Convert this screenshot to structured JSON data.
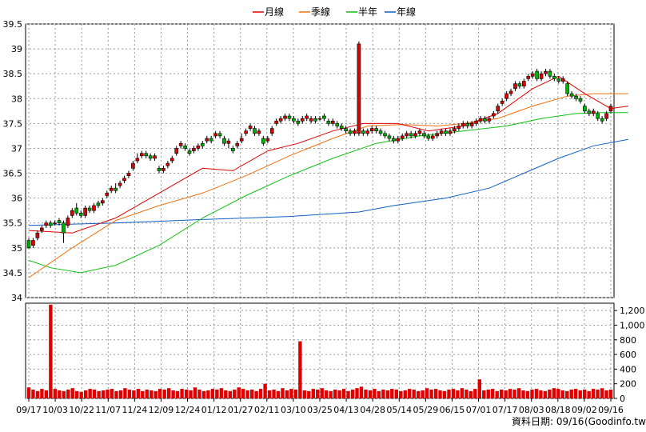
{
  "chart_data": [
    {
      "type": "candlestick",
      "legend": [
        {
          "name": "月線",
          "color": "#e00000"
        },
        {
          "name": "季線",
          "color": "#f07010"
        },
        {
          "name": "半年",
          "color": "#10c010"
        },
        {
          "name": "年線",
          "color": "#1060c0"
        }
      ],
      "legend_position": "top-center",
      "ylim": [
        34,
        39.5
      ],
      "yticks": [
        "34",
        "34.5",
        "35",
        "35.5",
        "36",
        "36.5",
        "37",
        "37.5",
        "38",
        "38.5",
        "39",
        "39.5"
      ],
      "grid": true,
      "candles": [
        [
          35.15,
          35.0,
          35.2,
          34.98
        ],
        [
          35.05,
          35.15,
          35.2,
          35.0
        ],
        [
          35.2,
          35.3,
          35.35,
          35.15
        ],
        [
          35.35,
          35.4,
          35.45,
          35.3
        ],
        [
          35.45,
          35.5,
          35.55,
          35.4
        ],
        [
          35.5,
          35.45,
          35.55,
          35.4
        ],
        [
          35.5,
          35.5,
          35.55,
          35.45
        ],
        [
          35.55,
          35.5,
          35.6,
          35.45
        ],
        [
          35.5,
          35.3,
          35.55,
          35.1
        ],
        [
          35.45,
          35.6,
          35.65,
          35.4
        ],
        [
          35.65,
          35.75,
          35.8,
          35.6
        ],
        [
          35.8,
          35.7,
          35.9,
          35.65
        ],
        [
          35.7,
          35.65,
          35.75,
          35.6
        ],
        [
          35.65,
          35.8,
          35.85,
          35.6
        ],
        [
          35.8,
          35.75,
          35.85,
          35.7
        ],
        [
          35.75,
          35.85,
          35.9,
          35.7
        ],
        [
          35.9,
          35.85,
          35.95,
          35.8
        ],
        [
          35.9,
          35.95,
          36.0,
          35.85
        ],
        [
          36.05,
          36.1,
          36.15,
          36.0
        ],
        [
          36.15,
          36.2,
          36.25,
          36.1
        ],
        [
          36.2,
          36.15,
          36.3,
          36.1
        ],
        [
          36.25,
          36.3,
          36.35,
          36.2
        ],
        [
          36.35,
          36.4,
          36.45,
          36.3
        ],
        [
          36.45,
          36.5,
          36.55,
          36.4
        ],
        [
          36.6,
          36.7,
          36.75,
          36.55
        ],
        [
          36.75,
          36.8,
          36.9,
          36.7
        ],
        [
          36.85,
          36.9,
          36.95,
          36.8
        ],
        [
          36.9,
          36.85,
          36.95,
          36.8
        ],
        [
          36.85,
          36.8,
          36.9,
          36.75
        ],
        [
          36.8,
          36.85,
          36.9,
          36.75
        ],
        [
          36.6,
          36.55,
          36.65,
          36.5
        ],
        [
          36.55,
          36.6,
          36.65,
          36.5
        ],
        [
          36.65,
          36.7,
          36.75,
          36.6
        ],
        [
          36.75,
          36.8,
          36.85,
          36.7
        ],
        [
          36.9,
          37.0,
          37.05,
          36.85
        ],
        [
          37.05,
          37.1,
          37.15,
          37.0
        ],
        [
          37.05,
          37.0,
          37.1,
          36.95
        ],
        [
          36.95,
          36.9,
          37.0,
          36.85
        ],
        [
          36.95,
          37.0,
          37.05,
          36.9
        ],
        [
          37.0,
          37.05,
          37.1,
          36.95
        ],
        [
          37.1,
          37.05,
          37.15,
          37.0
        ],
        [
          37.15,
          37.2,
          37.25,
          37.1
        ],
        [
          37.2,
          37.15,
          37.25,
          37.1
        ],
        [
          37.25,
          37.3,
          37.35,
          37.2
        ],
        [
          37.3,
          37.25,
          37.35,
          37.2
        ],
        [
          37.2,
          37.1,
          37.25,
          37.05
        ],
        [
          37.1,
          37.15,
          37.2,
          37.0
        ],
        [
          37.0,
          36.95,
          37.05,
          36.9
        ],
        [
          37.05,
          37.1,
          37.15,
          37.0
        ],
        [
          37.15,
          37.2,
          37.3,
          37.1
        ],
        [
          37.3,
          37.35,
          37.4,
          37.25
        ],
        [
          37.4,
          37.45,
          37.5,
          37.35
        ],
        [
          37.4,
          37.3,
          37.45,
          37.25
        ],
        [
          37.3,
          37.35,
          37.4,
          37.25
        ],
        [
          37.2,
          37.1,
          37.25,
          37.05
        ],
        [
          37.15,
          37.2,
          37.25,
          37.1
        ],
        [
          37.3,
          37.4,
          37.45,
          37.25
        ],
        [
          37.5,
          37.55,
          37.6,
          37.45
        ],
        [
          37.55,
          37.6,
          37.65,
          37.5
        ],
        [
          37.6,
          37.65,
          37.7,
          37.55
        ],
        [
          37.65,
          37.6,
          37.7,
          37.55
        ],
        [
          37.6,
          37.55,
          37.65,
          37.5
        ],
        [
          37.55,
          37.5,
          37.6,
          37.45
        ],
        [
          37.55,
          37.6,
          37.65,
          37.5
        ],
        [
          37.6,
          37.65,
          37.7,
          37.55
        ],
        [
          37.55,
          37.6,
          37.65,
          37.5
        ],
        [
          37.6,
          37.55,
          37.65,
          37.5
        ],
        [
          37.6,
          37.6,
          37.65,
          37.55
        ],
        [
          37.65,
          37.6,
          37.7,
          37.55
        ],
        [
          37.55,
          37.5,
          37.6,
          37.45
        ],
        [
          37.5,
          37.55,
          37.6,
          37.45
        ],
        [
          37.5,
          37.45,
          37.55,
          37.4
        ],
        [
          37.45,
          37.4,
          37.5,
          37.35
        ],
        [
          37.4,
          37.35,
          37.45,
          37.3
        ],
        [
          37.35,
          37.3,
          37.4,
          37.25
        ],
        [
          37.3,
          37.35,
          37.4,
          37.25
        ],
        [
          37.3,
          39.1,
          39.15,
          37.25
        ],
        [
          37.35,
          37.3,
          37.4,
          37.25
        ],
        [
          37.3,
          37.35,
          37.4,
          37.25
        ],
        [
          37.35,
          37.4,
          37.45,
          37.3
        ],
        [
          37.4,
          37.35,
          37.45,
          37.3
        ],
        [
          37.35,
          37.3,
          37.4,
          37.25
        ],
        [
          37.3,
          37.25,
          37.35,
          37.2
        ],
        [
          37.25,
          37.2,
          37.3,
          37.15
        ],
        [
          37.2,
          37.15,
          37.25,
          37.1
        ],
        [
          37.15,
          37.2,
          37.25,
          37.1
        ],
        [
          37.2,
          37.25,
          37.3,
          37.15
        ],
        [
          37.25,
          37.3,
          37.35,
          37.2
        ],
        [
          37.3,
          37.25,
          37.35,
          37.2
        ],
        [
          37.25,
          37.3,
          37.35,
          37.2
        ],
        [
          37.3,
          37.35,
          37.4,
          37.25
        ],
        [
          37.3,
          37.25,
          37.35,
          37.2
        ],
        [
          37.25,
          37.2,
          37.3,
          37.15
        ],
        [
          37.2,
          37.25,
          37.3,
          37.15
        ],
        [
          37.25,
          37.3,
          37.35,
          37.2
        ],
        [
          37.3,
          37.35,
          37.4,
          37.25
        ],
        [
          37.35,
          37.3,
          37.4,
          37.25
        ],
        [
          37.3,
          37.35,
          37.4,
          37.25
        ],
        [
          37.35,
          37.4,
          37.45,
          37.3
        ],
        [
          37.4,
          37.45,
          37.5,
          37.35
        ],
        [
          37.45,
          37.5,
          37.55,
          37.4
        ],
        [
          37.5,
          37.45,
          37.55,
          37.4
        ],
        [
          37.45,
          37.5,
          37.55,
          37.4
        ],
        [
          37.5,
          37.55,
          37.6,
          37.45
        ],
        [
          37.55,
          37.6,
          37.65,
          37.5
        ],
        [
          37.6,
          37.55,
          37.65,
          37.5
        ],
        [
          37.55,
          37.6,
          37.65,
          37.5
        ],
        [
          37.65,
          37.7,
          37.75,
          37.6
        ],
        [
          37.75,
          37.85,
          37.9,
          37.7
        ],
        [
          37.9,
          37.95,
          38.0,
          37.85
        ],
        [
          38.0,
          38.1,
          38.15,
          37.95
        ],
        [
          38.1,
          38.15,
          38.2,
          38.05
        ],
        [
          38.2,
          38.3,
          38.35,
          38.15
        ],
        [
          38.3,
          38.25,
          38.35,
          38.2
        ],
        [
          38.25,
          38.35,
          38.4,
          38.2
        ],
        [
          38.4,
          38.45,
          38.5,
          38.35
        ],
        [
          38.45,
          38.5,
          38.55,
          38.4
        ],
        [
          38.55,
          38.4,
          38.6,
          38.35
        ],
        [
          38.4,
          38.5,
          38.55,
          38.35
        ],
        [
          38.5,
          38.55,
          38.6,
          38.45
        ],
        [
          38.55,
          38.45,
          38.6,
          38.4
        ],
        [
          38.45,
          38.4,
          38.5,
          38.35
        ],
        [
          38.4,
          38.35,
          38.45,
          38.3
        ],
        [
          38.35,
          38.4,
          38.45,
          38.3
        ],
        [
          38.3,
          38.1,
          38.35,
          38.05
        ],
        [
          38.1,
          38.05,
          38.15,
          38.0
        ],
        [
          38.05,
          38.0,
          38.1,
          37.95
        ],
        [
          38.0,
          37.95,
          38.05,
          37.9
        ],
        [
          37.85,
          37.75,
          37.9,
          37.7
        ],
        [
          37.75,
          37.7,
          37.8,
          37.65
        ],
        [
          37.7,
          37.75,
          37.8,
          37.65
        ],
        [
          37.7,
          37.6,
          37.75,
          37.55
        ],
        [
          37.6,
          37.55,
          37.65,
          37.5
        ],
        [
          37.6,
          37.7,
          37.75,
          37.55
        ],
        [
          37.75,
          37.85,
          37.9,
          37.7
        ]
      ],
      "ma_month": [
        [
          0,
          35.35
        ],
        [
          10,
          35.3
        ],
        [
          20,
          35.6
        ],
        [
          30,
          36.1
        ],
        [
          40,
          36.6
        ],
        [
          47,
          36.55
        ],
        [
          55,
          36.95
        ],
        [
          62,
          37.1
        ],
        [
          70,
          37.35
        ],
        [
          77,
          37.5
        ],
        [
          85,
          37.5
        ],
        [
          92,
          37.35
        ],
        [
          100,
          37.45
        ],
        [
          108,
          37.7
        ],
        [
          116,
          38.2
        ],
        [
          122,
          38.45
        ],
        [
          128,
          38.1
        ],
        [
          134,
          37.8
        ],
        [
          138,
          37.85
        ]
      ],
      "ma_quarter": [
        [
          0,
          34.4
        ],
        [
          10,
          35.0
        ],
        [
          20,
          35.55
        ],
        [
          30,
          35.85
        ],
        [
          40,
          36.1
        ],
        [
          50,
          36.45
        ],
        [
          60,
          36.85
        ],
        [
          70,
          37.2
        ],
        [
          78,
          37.45
        ],
        [
          86,
          37.48
        ],
        [
          94,
          37.45
        ],
        [
          100,
          37.5
        ],
        [
          108,
          37.6
        ],
        [
          116,
          37.85
        ],
        [
          124,
          38.05
        ],
        [
          130,
          38.1
        ],
        [
          138,
          38.1
        ]
      ],
      "ma_halfyear": [
        [
          0,
          34.75
        ],
        [
          5,
          34.6
        ],
        [
          12,
          34.5
        ],
        [
          20,
          34.65
        ],
        [
          30,
          35.05
        ],
        [
          40,
          35.6
        ],
        [
          50,
          36.05
        ],
        [
          60,
          36.45
        ],
        [
          70,
          36.8
        ],
        [
          80,
          37.1
        ],
        [
          90,
          37.25
        ],
        [
          100,
          37.35
        ],
        [
          110,
          37.45
        ],
        [
          118,
          37.6
        ],
        [
          126,
          37.7
        ],
        [
          132,
          37.72
        ],
        [
          138,
          37.72
        ]
      ],
      "ma_year": [
        [
          0,
          35.45
        ],
        [
          20,
          35.5
        ],
        [
          40,
          35.57
        ],
        [
          60,
          35.63
        ],
        [
          76,
          35.72
        ],
        [
          84,
          35.85
        ],
        [
          96,
          36.0
        ],
        [
          106,
          36.2
        ],
        [
          114,
          36.5
        ],
        [
          122,
          36.8
        ],
        [
          130,
          37.05
        ],
        [
          138,
          37.18
        ]
      ],
      "x_tick_labels": [
        "09/17",
        "10/03",
        "10/22",
        "11/07",
        "11/24",
        "12/09",
        "12/24",
        "01/12",
        "01/27",
        "02/11",
        "03/10",
        "03/25",
        "04/13",
        "04/28",
        "05/14",
        "05/29",
        "06/15",
        "07/01",
        "07/17",
        "08/03",
        "08/18",
        "09/02",
        "09/16"
      ]
    },
    {
      "type": "bar",
      "ylim": [
        0,
        1300
      ],
      "yticks": [
        "0",
        "200",
        "400",
        "600",
        "800",
        "1,000",
        "1,200"
      ],
      "bar_color": "#e00000",
      "values": [
        150,
        120,
        100,
        130,
        110,
        1280,
        130,
        110,
        100,
        120,
        140,
        100,
        90,
        110,
        130,
        120,
        100,
        110,
        120,
        130,
        100,
        110,
        140,
        120,
        110,
        130,
        100,
        120,
        110,
        100,
        130,
        120,
        140,
        110,
        100,
        130,
        120,
        110,
        150,
        120,
        100,
        110,
        130,
        120,
        140,
        110,
        100,
        120,
        150,
        130,
        110,
        120,
        100,
        130,
        200,
        110,
        120,
        100,
        140,
        110,
        130,
        120,
        780,
        110,
        100,
        130,
        120,
        140,
        110,
        100,
        120,
        110,
        130,
        100,
        120,
        140,
        160,
        120,
        110,
        130,
        100,
        120,
        110,
        130,
        120,
        100,
        110,
        130,
        120,
        100,
        110,
        140,
        120,
        130,
        110,
        100,
        120,
        130,
        110,
        140,
        120,
        100,
        130,
        260,
        110,
        120,
        130,
        100,
        120,
        110,
        130,
        120,
        140,
        110,
        100,
        120,
        130,
        110,
        100,
        120,
        140,
        130,
        110,
        100,
        120,
        130,
        110,
        120,
        100,
        130,
        120,
        140,
        110,
        120
      ]
    }
  ],
  "footer": {
    "date_label": "資料日期: 09/16",
    "source": "(Goodinfo.tw)"
  }
}
